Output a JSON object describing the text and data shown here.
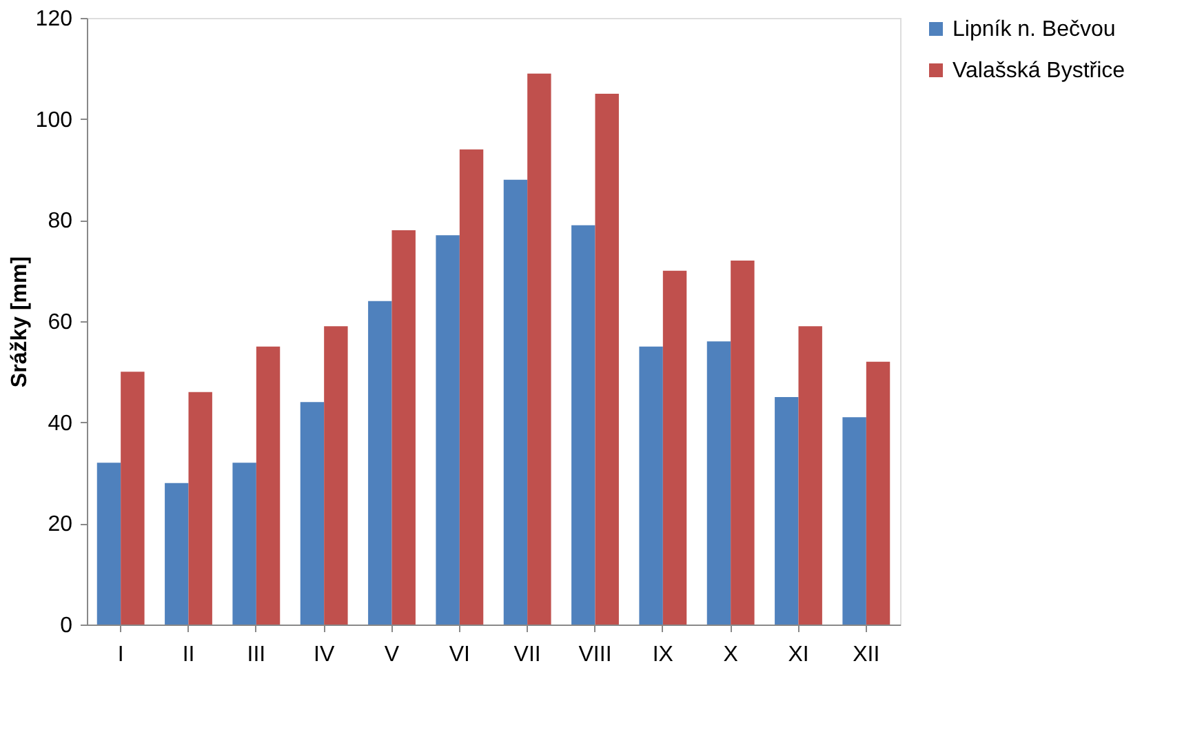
{
  "chart_data": {
    "type": "bar",
    "ylabel": "Srážky  [mm]",
    "categories": [
      "I",
      "II",
      "III",
      "IV",
      "V",
      "VI",
      "VII",
      "VIII",
      "IX",
      "X",
      "XI",
      "XII"
    ],
    "series": [
      {
        "name": "Lipník n. Bečvou",
        "color": "#4f81bd",
        "values": [
          32,
          28,
          32,
          44,
          64,
          77,
          88,
          79,
          55,
          56,
          45,
          41
        ]
      },
      {
        "name": "Valašská Bystřice",
        "color": "#c0504d",
        "values": [
          50,
          46,
          55,
          59,
          78,
          94,
          109,
          105,
          70,
          72,
          59,
          52
        ]
      }
    ],
    "ylim": [
      0,
      120
    ],
    "yticks": [
      0,
      20,
      40,
      60,
      80,
      100,
      120
    ],
    "grid": false,
    "legend": "right"
  }
}
